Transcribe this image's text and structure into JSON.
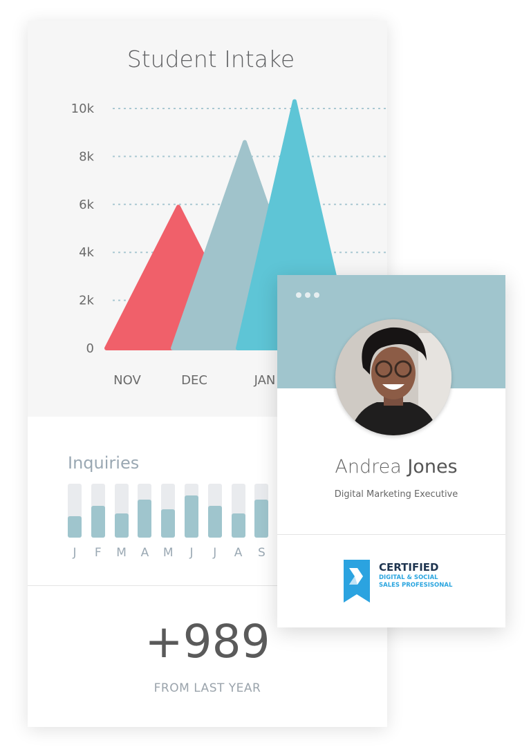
{
  "chart_data": {
    "type": "area",
    "title": "Student Intake",
    "categories": [
      "NOV",
      "DEC",
      "JAN"
    ],
    "values": [
      5900,
      8600,
      10300
    ],
    "colors": [
      "#f0606a",
      "#a0c3cb",
      "#5ec5d6"
    ],
    "yticks": [
      "0",
      "2k",
      "4k",
      "6k",
      "8k",
      "10k"
    ],
    "ylim": [
      0,
      10000
    ],
    "grid": true
  },
  "inquiries": {
    "title": "Inquiries",
    "months": [
      "J",
      "F",
      "M",
      "A",
      "M",
      "J",
      "J",
      "A",
      "S"
    ],
    "levels": [
      0.4,
      0.59,
      0.45,
      0.71,
      0.53,
      0.78,
      0.59,
      0.45,
      0.71
    ]
  },
  "summary": {
    "value": "+989",
    "label": "FROM LAST YEAR"
  },
  "profile": {
    "first_name": "Andrea",
    "last_name": "Jones",
    "job_title": "Digital Marketing Executive",
    "menu_icon": "more-horizontal-icon",
    "certification": {
      "title": "CERTIFIED",
      "line1": "DIGITAL & SOCIAL",
      "line2": "SALES PROFESISONAL"
    }
  }
}
